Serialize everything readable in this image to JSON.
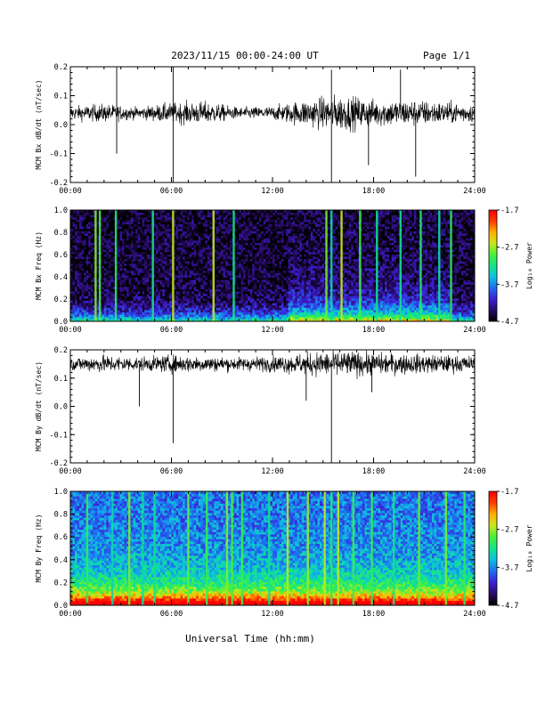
{
  "header": {
    "title": "2023/11/15  00:00-24:00 UT",
    "page": "Page 1/1"
  },
  "x_axis_label": "Universal Time (hh:mm)",
  "colors": {
    "trace": "#000000",
    "colormap": [
      "#000000",
      "#2a0a66",
      "#3b1fd6",
      "#1f6cf2",
      "#0fbfe0",
      "#10e68a",
      "#48f03a",
      "#c8e81c",
      "#ffb000",
      "#ff3a00",
      "#ff0000"
    ]
  },
  "chart_data": [
    {
      "type": "line",
      "ylabel": "MCM Bx dB/dt (nT/sec)",
      "xlim": [
        0,
        24
      ],
      "ylim": [
        -0.2,
        0.2
      ],
      "yticks": [
        "0.2",
        "0.1",
        "0.0",
        "-0.1",
        "-0.2"
      ],
      "xticks": [
        "00:00",
        "06:00",
        "12:00",
        "18:00",
        "24:00"
      ],
      "baseline": 0.04,
      "noise_envelope": [
        {
          "x": 0,
          "amp": 0.03
        },
        {
          "x": 2,
          "amp": 0.04
        },
        {
          "x": 4,
          "amp": 0.025
        },
        {
          "x": 6,
          "amp": 0.045
        },
        {
          "x": 8,
          "amp": 0.05
        },
        {
          "x": 10,
          "amp": 0.025
        },
        {
          "x": 12,
          "amp": 0.03
        },
        {
          "x": 14,
          "amp": 0.06
        },
        {
          "x": 16,
          "amp": 0.08
        },
        {
          "x": 18,
          "amp": 0.06
        },
        {
          "x": 20,
          "amp": 0.06
        },
        {
          "x": 22,
          "amp": 0.05
        },
        {
          "x": 24,
          "amp": 0.04
        }
      ],
      "spikes": [
        {
          "x": 2.75,
          "y": 0.2
        },
        {
          "x": 2.75,
          "y": -0.1
        },
        {
          "x": 6.1,
          "y": 0.2
        },
        {
          "x": 6.1,
          "y": -0.2
        },
        {
          "x": 15.5,
          "y": -0.2
        },
        {
          "x": 15.5,
          "y": 0.19
        },
        {
          "x": 20.5,
          "y": -0.18
        },
        {
          "x": 19.6,
          "y": 0.19
        },
        {
          "x": 17.7,
          "y": -0.14
        }
      ]
    },
    {
      "type": "heatmap",
      "ylabel": "MCM Bx Freq (Hz)",
      "xlim": [
        0,
        24
      ],
      "ylim": [
        0,
        1.0
      ],
      "yticks": [
        "1.0",
        "0.8",
        "0.6",
        "0.4",
        "0.2",
        "0.0"
      ],
      "xticks": [
        "00:00",
        "06:00",
        "12:00",
        "18:00",
        "24:00"
      ],
      "colorbar": {
        "label": "Log₁₀ Power",
        "ticks": [
          "-1.7",
          "-2.7",
          "-3.7",
          "-4.7"
        ],
        "range": [
          -4.7,
          -1.7
        ]
      },
      "background_level": 0.05,
      "low_freq_level": 0.5,
      "activity_bands": [
        {
          "x0": 13.0,
          "x1": 22.5,
          "level": 0.25
        }
      ],
      "vertical_lines": [
        1.5,
        1.75,
        2.7,
        4.9,
        6.1,
        8.5,
        9.7,
        15.2,
        15.5,
        16.1,
        17.2,
        18.2,
        19.6,
        20.8,
        21.9,
        22.6
      ]
    },
    {
      "type": "line",
      "ylabel": "MCM By dB/dt (nT/sec)",
      "xlim": [
        0,
        24
      ],
      "ylim": [
        -0.2,
        0.2
      ],
      "yticks": [
        "0.2",
        "0.1",
        "0.0",
        "-0.1",
        "-0.2"
      ],
      "xticks": [
        "00:00",
        "06:00",
        "12:00",
        "18:00",
        "24:00"
      ],
      "baseline": 0.15,
      "noise_envelope": [
        {
          "x": 0,
          "amp": 0.03
        },
        {
          "x": 2,
          "amp": 0.04
        },
        {
          "x": 4,
          "amp": 0.03
        },
        {
          "x": 6,
          "amp": 0.04
        },
        {
          "x": 8,
          "amp": 0.035
        },
        {
          "x": 10,
          "amp": 0.03
        },
        {
          "x": 12,
          "amp": 0.035
        },
        {
          "x": 14,
          "amp": 0.05
        },
        {
          "x": 16,
          "amp": 0.06
        },
        {
          "x": 18,
          "amp": 0.05
        },
        {
          "x": 20,
          "amp": 0.045
        },
        {
          "x": 22,
          "amp": 0.04
        },
        {
          "x": 24,
          "amp": 0.035
        }
      ],
      "spikes": [
        {
          "x": 6.1,
          "y": -0.13
        },
        {
          "x": 15.5,
          "y": -0.2
        },
        {
          "x": 14.0,
          "y": 0.02
        },
        {
          "x": 4.1,
          "y": 0.0
        },
        {
          "x": 17.9,
          "y": 0.05
        }
      ]
    },
    {
      "type": "heatmap",
      "ylabel": "MCM By Freq (Hz)",
      "xlim": [
        0,
        24
      ],
      "ylim": [
        0,
        1.0
      ],
      "yticks": [
        "1.0",
        "0.8",
        "0.6",
        "0.4",
        "0.2",
        "0.0"
      ],
      "xticks": [
        "00:00",
        "06:00",
        "12:00",
        "18:00",
        "24:00"
      ],
      "colorbar": {
        "label": "Log₁₀ Power",
        "ticks": [
          "-1.7",
          "-2.7",
          "-3.7",
          "-4.7"
        ],
        "range": [
          -4.7,
          -1.7
        ]
      },
      "background_level": 0.3,
      "low_freq_level": 0.6,
      "activity_bands": [
        {
          "x0": 0.0,
          "x1": 24.0,
          "level": 0.38
        }
      ],
      "vertical_lines": [
        1.0,
        2.5,
        3.5,
        4.3,
        5.0,
        7.0,
        8.1,
        9.3,
        9.6,
        10.2,
        11.8,
        12.9,
        14.1,
        15.1,
        15.5,
        15.9,
        16.8,
        17.9,
        19.2,
        20.7,
        22.3,
        23.4
      ]
    }
  ]
}
